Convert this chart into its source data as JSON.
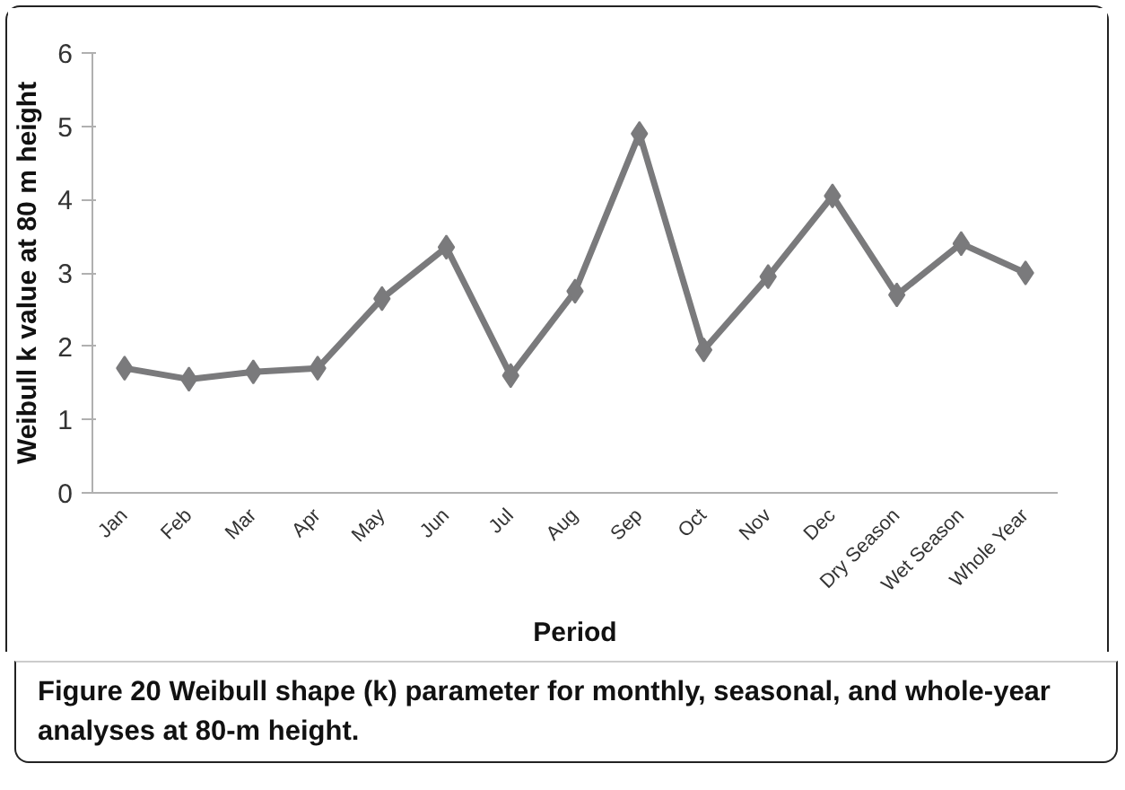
{
  "chart_data": {
    "type": "line",
    "xlabel": "Period",
    "ylabel": "Weibull k value at 80 m height",
    "categories": [
      "Jan",
      "Feb",
      "Mar",
      "Apr",
      "May",
      "Jun",
      "Jul",
      "Aug",
      "Sep",
      "Oct",
      "Nov",
      "Dec",
      "Dry Season",
      "Wet Season",
      "Whole Year"
    ],
    "series": [
      {
        "color": "#7a7a7c",
        "values": [
          1.7,
          1.55,
          1.65,
          1.7,
          2.65,
          3.35,
          1.6,
          2.75,
          4.9,
          1.95,
          2.95,
          4.05,
          2.7,
          3.4,
          3.0
        ]
      }
    ],
    "ylim": [
      0,
      6
    ],
    "yticks": [
      0,
      1,
      2,
      3,
      4,
      5,
      6
    ],
    "grid": false,
    "marker": "diamond",
    "line_style": "solid",
    "annotations": [
      "Figure 20 Weibull shape (k) parameter for monthly, seasonal, and whole-year analyses at 80-m height."
    ]
  }
}
